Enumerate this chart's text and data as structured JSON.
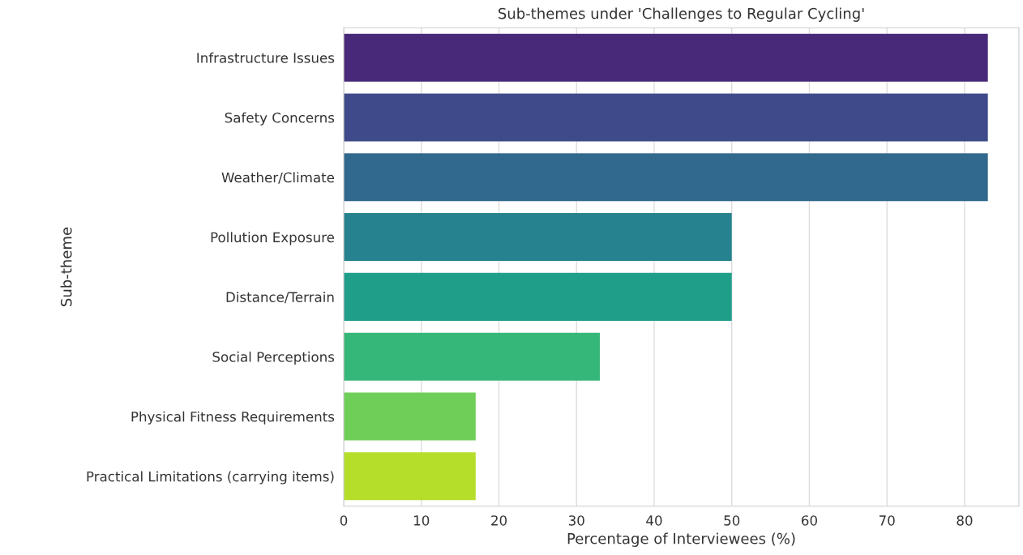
{
  "chart_data": {
    "type": "bar",
    "orientation": "horizontal",
    "title": "Sub-themes under 'Challenges to Regular Cycling'",
    "xlabel": "Percentage of Interviewees (%)",
    "ylabel": "Sub-theme",
    "categories": [
      "Infrastructure Issues",
      "Safety Concerns",
      "Weather/Climate",
      "Pollution Exposure",
      "Distance/Terrain",
      "Social Perceptions",
      "Physical Fitness Requirements",
      "Practical Limitations (carrying items)"
    ],
    "values": [
      83,
      83,
      83,
      50,
      50,
      33,
      17,
      17
    ],
    "colors": [
      "#482878",
      "#3e4a89",
      "#31688e",
      "#26828e",
      "#1f9e89",
      "#35b779",
      "#6ece58",
      "#b5de2b"
    ],
    "xlim": [
      0,
      87
    ],
    "xticks": [
      0,
      10,
      20,
      30,
      40,
      50,
      60,
      70,
      80
    ],
    "grid": "x"
  }
}
